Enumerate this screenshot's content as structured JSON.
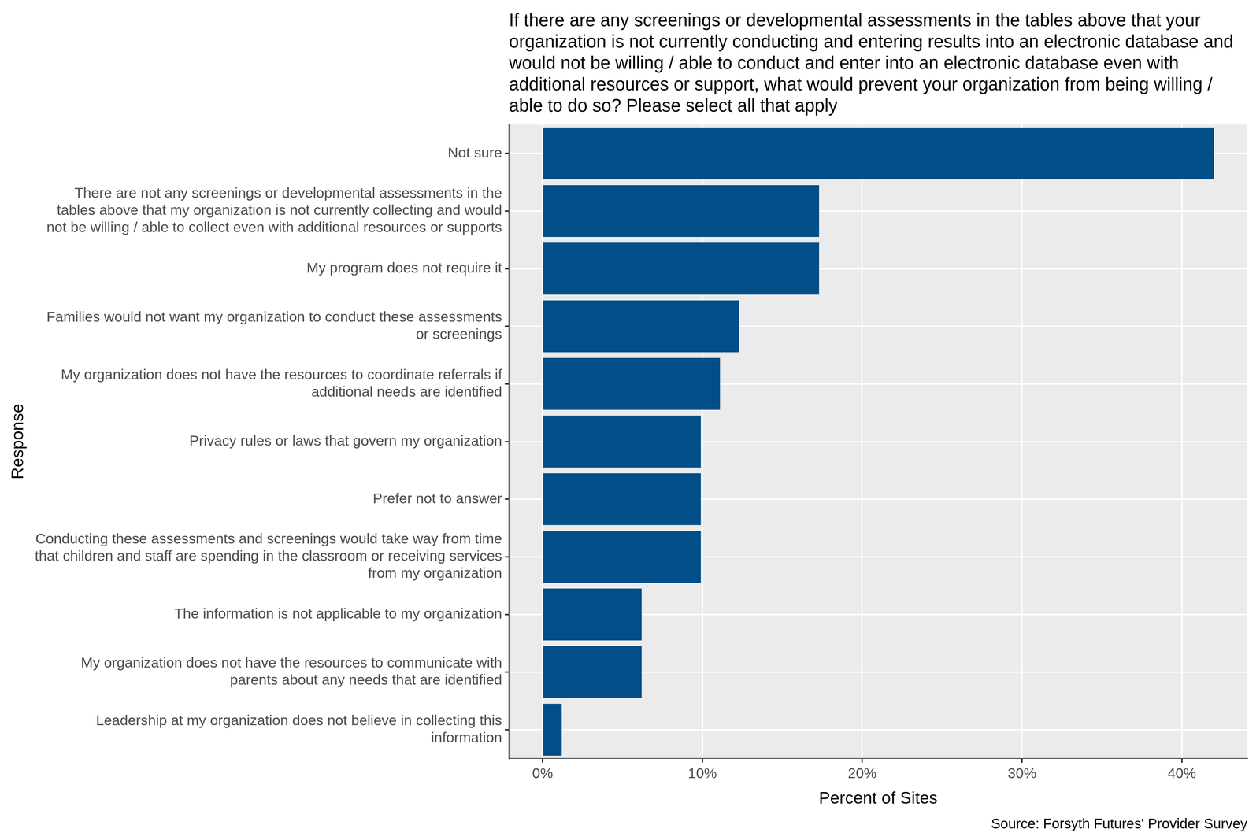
{
  "chart_data": {
    "type": "bar",
    "orientation": "horizontal",
    "title": "If there are any screenings or developmental assessments in the tables above that your organization is not currently conducting and entering results into an electronic database and would not be willing / able to conduct and enter into an electronic database even with additional resources or support, what would prevent your organization from being willing / able to do so? Please select all that apply",
    "x_label": "Percent of Sites",
    "y_label": "Response",
    "caption": "Source: Forsyth Futures' Provider Survey",
    "categories": [
      "Not sure",
      "There are not any screenings or developmental assessments in the tables above that my organization is not currently collecting and would not be willing / able to collect even with additional resources or supports",
      "My program does not require it",
      "Families would not want my organization to conduct these assessments or screenings",
      "My organization does not have the resources to coordinate referrals if additional needs are identified",
      "Privacy rules or laws that govern my organization",
      "Prefer not to answer",
      "Conducting these assessments and screenings would take way from time that children and staff are spending in the classroom or receiving services from my organization",
      "The information is not applicable to my organization",
      "My organization does not have the resources to communicate with parents about any needs that are identified",
      "Leadership at my organization does not believe in collecting this information"
    ],
    "values": [
      42.0,
      17.3,
      17.3,
      12.3,
      11.1,
      9.9,
      9.9,
      9.9,
      6.2,
      6.2,
      1.2
    ],
    "color": "#024e89",
    "xlim": [
      -2.1,
      44.1
    ],
    "xticks": [
      {
        "value": 0,
        "label": "0%"
      },
      {
        "value": 10,
        "label": "10%"
      },
      {
        "value": 20,
        "label": "20%"
      },
      {
        "value": 30,
        "label": "30%"
      },
      {
        "value": 40,
        "label": "40%"
      }
    ],
    "grid": true
  }
}
